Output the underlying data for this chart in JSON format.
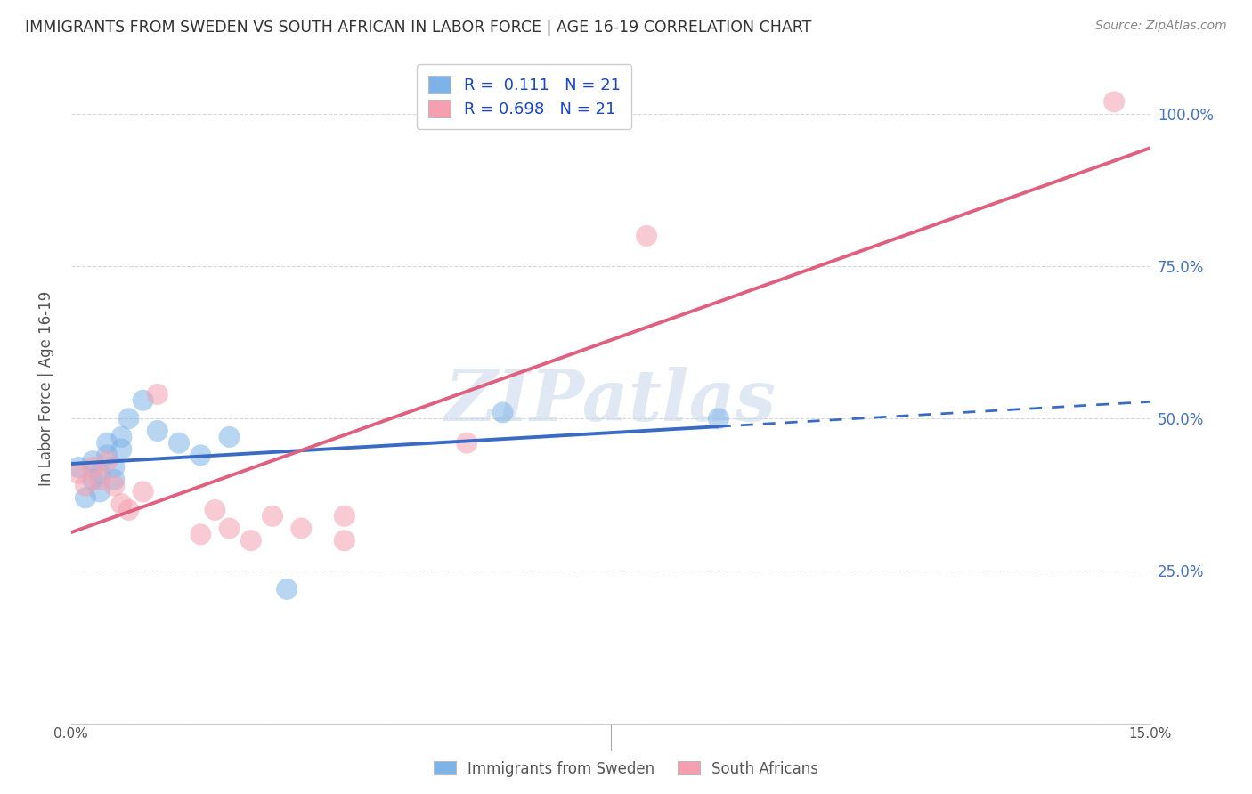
{
  "title": "IMMIGRANTS FROM SWEDEN VS SOUTH AFRICAN IN LABOR FORCE | AGE 16-19 CORRELATION CHART",
  "source": "Source: ZipAtlas.com",
  "ylabel": "In Labor Force | Age 16-19",
  "xlim": [
    0.0,
    0.15
  ],
  "ylim": [
    0.0,
    1.1
  ],
  "ytick_labels": [
    "",
    "25.0%",
    "50.0%",
    "75.0%",
    "100.0%"
  ],
  "ytick_values": [
    0.0,
    0.25,
    0.5,
    0.75,
    1.0
  ],
  "xtick_labels": [
    "0.0%",
    "",
    "",
    "",
    "",
    "",
    "",
    "",
    "",
    "",
    "",
    "",
    "",
    "",
    "",
    "15.0%"
  ],
  "xtick_values": [
    0.0,
    0.01,
    0.02,
    0.03,
    0.04,
    0.05,
    0.06,
    0.07,
    0.08,
    0.09,
    0.1,
    0.11,
    0.12,
    0.13,
    0.14,
    0.15
  ],
  "sweden_x": [
    0.001,
    0.002,
    0.003,
    0.003,
    0.004,
    0.004,
    0.005,
    0.005,
    0.006,
    0.006,
    0.007,
    0.007,
    0.008,
    0.01,
    0.012,
    0.015,
    0.018,
    0.022,
    0.03,
    0.06,
    0.09
  ],
  "sweden_y": [
    0.42,
    0.37,
    0.43,
    0.4,
    0.41,
    0.38,
    0.44,
    0.46,
    0.4,
    0.42,
    0.47,
    0.45,
    0.5,
    0.53,
    0.48,
    0.46,
    0.44,
    0.47,
    0.22,
    0.51,
    0.5
  ],
  "sa_x": [
    0.001,
    0.002,
    0.003,
    0.004,
    0.005,
    0.006,
    0.007,
    0.008,
    0.01,
    0.012,
    0.018,
    0.02,
    0.022,
    0.025,
    0.028,
    0.032,
    0.038,
    0.038,
    0.055,
    0.08,
    0.145
  ],
  "sa_y": [
    0.41,
    0.39,
    0.42,
    0.4,
    0.43,
    0.39,
    0.36,
    0.35,
    0.38,
    0.54,
    0.31,
    0.35,
    0.32,
    0.3,
    0.34,
    0.32,
    0.3,
    0.34,
    0.46,
    0.8,
    1.02
  ],
  "sweden_color": "#7EB3E8",
  "sa_color": "#F4A0B0",
  "sweden_line_color": "#3A6BC4",
  "sa_line_color": "#E06080",
  "sweden_R": 0.111,
  "sweden_N": 21,
  "sa_R": 0.698,
  "sa_N": 21,
  "legend_label_sweden": "Immigrants from Sweden",
  "legend_label_sa": "South Africans",
  "watermark": "ZIPatlas",
  "background_color": "#ffffff",
  "grid_color": "#d8d8d8",
  "sweden_line_solid_end": 0.09,
  "sa_line_solid_end": 0.15
}
